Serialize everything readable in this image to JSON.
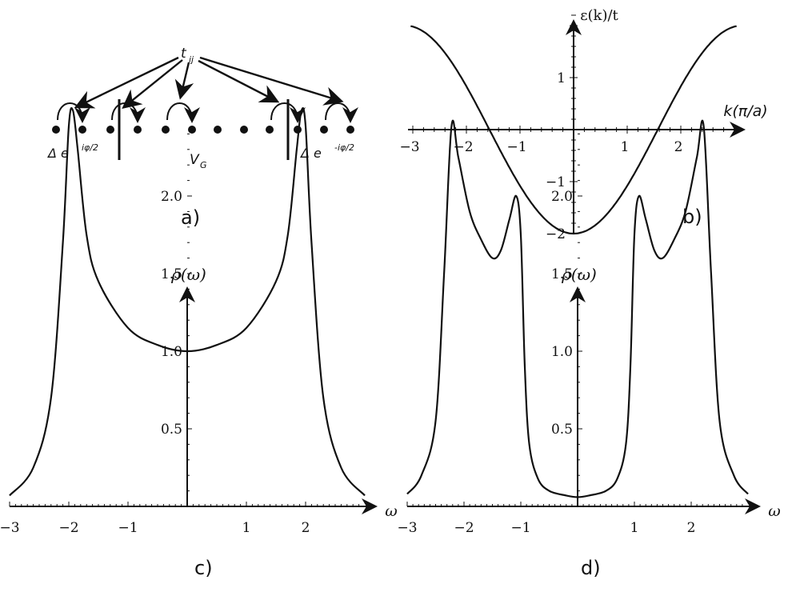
{
  "panels": {
    "a": {
      "hopping_label": "t",
      "hopping_sub": "ij",
      "left_pairing": "Δ e",
      "left_pairing_sup": "iφ/2",
      "gate_label": "V",
      "gate_sub": "G",
      "right_pairing": "Δ e",
      "right_pairing_sup": "-iφ/2",
      "panel_label": "a)"
    },
    "b": {
      "panel_label": "b)"
    },
    "c": {
      "panel_label": "c)"
    },
    "d": {
      "panel_label": "d)"
    }
  },
  "chart_data": [
    {
      "panel": "b",
      "type": "line",
      "ylabel": "ε(k)/t",
      "xlabel": "k(π/a)",
      "xlim": [
        -3.2,
        3.2
      ],
      "ylim": [
        -2.05,
        2.4
      ],
      "xticks": [
        -3,
        -2,
        -1,
        1,
        2
      ],
      "yticks": [
        -2,
        -1,
        1
      ],
      "function": "-2cos(k)"
    },
    {
      "panel": "c",
      "type": "line",
      "ylabel": "ρ(ω)",
      "xlabel": "ω",
      "xlim": [
        -3,
        3
      ],
      "ylim": [
        0,
        3.5
      ],
      "xticks": [
        -3,
        -2,
        -1,
        1,
        2
      ],
      "yticks": [
        0.5,
        1.0,
        1.5,
        2.0
      ],
      "series": [
        {
          "x": [
            -3.0,
            -2.6,
            -2.3,
            -2.1,
            -2.0,
            -1.93,
            -1.85,
            -1.7,
            -1.5,
            -1.0,
            -0.5,
            0.0,
            0.5,
            1.0,
            1.5,
            1.7,
            1.85,
            1.93,
            2.0,
            2.1,
            2.3,
            2.6,
            3.0
          ],
          "y": [
            0.07,
            0.25,
            0.7,
            1.7,
            2.45,
            2.55,
            2.3,
            1.75,
            1.45,
            1.15,
            1.04,
            1.0,
            1.04,
            1.15,
            1.45,
            1.75,
            2.3,
            2.55,
            2.45,
            1.7,
            0.7,
            0.25,
            0.07
          ]
        }
      ]
    },
    {
      "panel": "d",
      "type": "line",
      "ylabel": "ρ(ω)",
      "xlabel": "ω",
      "xlim": [
        -3,
        3
      ],
      "ylim": [
        0,
        3.5
      ],
      "xticks": [
        -3,
        -2,
        -1,
        1,
        2
      ],
      "yticks": [
        0.5,
        1.0,
        1.5,
        2.0
      ],
      "series": [
        {
          "x": [
            -3.0,
            -2.75,
            -2.5,
            -2.35,
            -2.22,
            -2.1,
            -1.9,
            -1.7,
            -1.5,
            -1.35,
            -1.2,
            -1.08,
            -1.0,
            -0.93,
            -0.85,
            -0.7,
            -0.5,
            -0.2,
            0.0,
            0.2,
            0.5,
            0.7,
            0.85,
            0.93,
            1.0,
            1.08,
            1.2,
            1.35,
            1.5,
            1.7,
            1.9,
            2.1,
            2.22,
            2.35,
            2.5,
            2.75,
            3.0
          ],
          "y": [
            0.08,
            0.2,
            0.55,
            1.5,
            2.45,
            2.25,
            1.9,
            1.72,
            1.6,
            1.65,
            1.85,
            2.0,
            1.75,
            0.9,
            0.4,
            0.18,
            0.1,
            0.07,
            0.06,
            0.07,
            0.1,
            0.18,
            0.4,
            0.9,
            1.75,
            2.0,
            1.85,
            1.65,
            1.6,
            1.72,
            1.9,
            2.25,
            2.45,
            1.5,
            0.55,
            0.2,
            0.08
          ]
        }
      ]
    }
  ]
}
